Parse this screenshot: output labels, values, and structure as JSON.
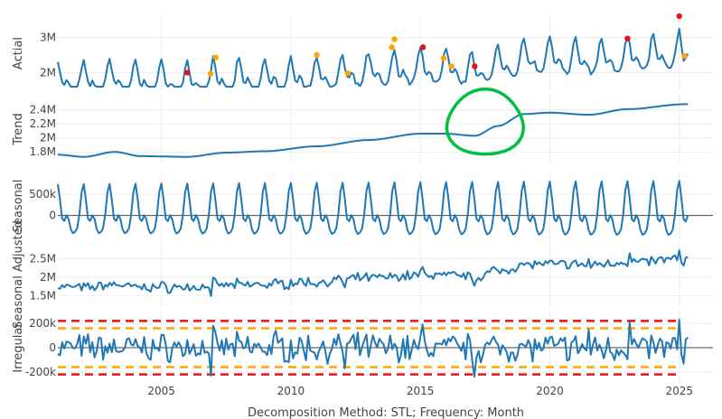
{
  "chart_data": {
    "type": "line",
    "x_title": "Decomposition Method: STL; Frequency: Month",
    "x_range": [
      2001,
      2026.3
    ],
    "x_ticks": [
      2005,
      2010,
      2015,
      2020,
      2025
    ],
    "colors": {
      "line": "#1f77b4",
      "grid": "#e9ecf2",
      "zero": "#444444",
      "outlier_high": "#e8101b",
      "outlier_mid": "#ffa500",
      "band_outer": "#e8101b",
      "band_inner": "#ffa500",
      "annotation_circle": "#00c040"
    },
    "panels": [
      {
        "name": "actual",
        "ylabel": "Actial",
        "y_range": [
          1600000,
          3500000
        ],
        "y_ticks": [
          2000000,
          3000000
        ],
        "y_tick_labels": [
          "2M",
          "3M"
        ],
        "model": {
          "base": 1780000,
          "slope": 40000,
          "seasonal": 550000
        },
        "outliers_red": [
          [
            2006.0,
            2000000
          ],
          [
            2015.1,
            2720000
          ],
          [
            2017.1,
            2180000
          ],
          [
            2023.0,
            2970000
          ],
          [
            2025.0,
            3620000
          ]
        ],
        "outliers_orange": [
          [
            2006.9,
            1970000
          ],
          [
            2007.1,
            2430000
          ],
          [
            2011.0,
            2500000
          ],
          [
            2012.2,
            1980000
          ],
          [
            2013.9,
            2720000
          ],
          [
            2014.0,
            2950000
          ],
          [
            2015.9,
            2410000
          ],
          [
            2016.2,
            2180000
          ],
          [
            2025.2,
            2470000
          ]
        ]
      },
      {
        "name": "trend",
        "ylabel": "Trend",
        "y_range": [
          1700000,
          2550000
        ],
        "y_ticks": [
          1800000,
          2000000,
          2200000,
          2400000
        ],
        "y_tick_labels": [
          "1.8M",
          "2M",
          "2.2M",
          "2.4M"
        ],
        "trend_points": [
          [
            2001.0,
            1760000
          ],
          [
            2002.0,
            1730000
          ],
          [
            2003.2,
            1800000
          ],
          [
            2004.2,
            1740000
          ],
          [
            2006.0,
            1730000
          ],
          [
            2007.5,
            1790000
          ],
          [
            2009.0,
            1810000
          ],
          [
            2011.0,
            1880000
          ],
          [
            2013.0,
            1970000
          ],
          [
            2015.0,
            2060000
          ],
          [
            2016.0,
            2060000
          ],
          [
            2017.1,
            2030000
          ],
          [
            2018.0,
            2170000
          ],
          [
            2019.0,
            2340000
          ],
          [
            2020.0,
            2360000
          ],
          [
            2021.5,
            2330000
          ],
          [
            2023.0,
            2410000
          ],
          [
            2025.2,
            2480000
          ]
        ]
      },
      {
        "name": "seasonal",
        "ylabel": "Seasonal",
        "y_range": [
          -450000,
          900000
        ],
        "y_ticks": [
          0,
          500000
        ],
        "y_tick_labels": [
          "0",
          "500k"
        ],
        "amplitude": 700000
      },
      {
        "name": "seasonal_adjusted",
        "ylabel": "Seasonal Adjusted",
        "y_range": [
          1300000,
          2850000
        ],
        "y_ticks": [
          1500000,
          2000000,
          2500000
        ],
        "y_tick_labels": [
          "1.5M",
          "2M",
          "2.5M"
        ]
      },
      {
        "name": "irregular",
        "ylabel": "Irregular",
        "y_range": [
          -260000,
          260000
        ],
        "y_ticks": [
          -200000,
          0,
          200000
        ],
        "y_tick_labels": [
          "-200k",
          "0",
          "200k"
        ],
        "bands_red": [
          220000,
          -220000
        ],
        "bands_orange": [
          160000,
          -160000
        ]
      }
    ],
    "annotation": {
      "type": "hand-drawn circle",
      "center": [
        2017.5,
        2210000
      ],
      "panel": "trend"
    }
  }
}
